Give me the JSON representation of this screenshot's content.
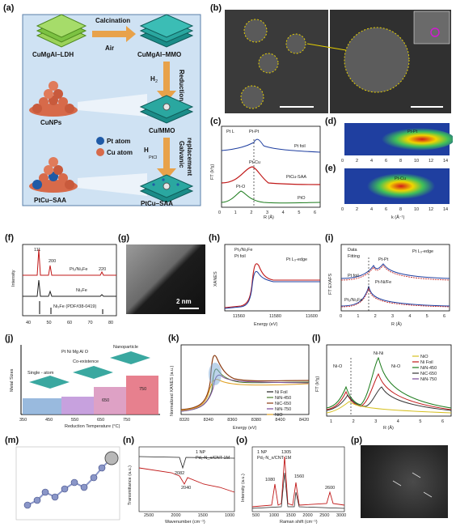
{
  "panels": {
    "a": {
      "label": "(a)",
      "cumgal_ldh": "CuMgAl–LDH",
      "calcination": "Calcination",
      "air": "Air",
      "cumgal_mmo": "CuMgAl–MMO",
      "reduction": "Reduction",
      "h2": "H",
      "h2_sub": "2",
      "cunps": "CuNPs",
      "cu_mmo": "Cu/MMO",
      "galvanic": "Galvanic",
      "replacement": "replacement",
      "h2ptcl6": "H",
      "h2ptcl6_rest": "PtCl",
      "pt_atom": "Pt atom",
      "cu_atom": "Cu atom",
      "ptcu_saa_left": "PtCu–SAA",
      "ptcu_saa_right": "PtCu–SAA"
    },
    "b": {
      "label": "(b)"
    },
    "c": {
      "label": "(c)",
      "edge": "Pt L",
      "edge_sub": "3",
      "edge_rest": "-edge",
      "ptpt": "Pt-Pt",
      "ptfoil": "Pt foil",
      "ptcu": "Pt-Cu",
      "ptcusaa": "PtCu-SAA",
      "pto": "Pt-O",
      "pto2": "PtO",
      "xlabel": "R (Å)",
      "ylabel": "FT (k³χ)",
      "xticks": [
        "0",
        "1",
        "2",
        "3",
        "4",
        "5",
        "6"
      ]
    },
    "d": {
      "label": "(d)",
      "ptpt": "Pt-Pt",
      "xticks": [
        "0",
        "2",
        "4",
        "6",
        "8",
        "10",
        "12",
        "14"
      ]
    },
    "e": {
      "label": "(e)",
      "ptcu": "Pt-Cu",
      "xlabel": "k (Å⁻¹)",
      "xticks": [
        "0",
        "2",
        "4",
        "6",
        "8",
        "10",
        "12",
        "14"
      ]
    },
    "f": {
      "label": "(f)",
      "p111": "111",
      "p200": "200",
      "p220": "220",
      "s1": "Pt₁/Ni₃Fe",
      "s2": "Ni₃Fe",
      "s3": "Ni₃Fe (PDF#38-0419)",
      "ylabel": "Intensity",
      "xlabel": "2 Theta (degree)",
      "xticks": [
        "40",
        "50",
        "60",
        "70",
        "80"
      ]
    },
    "g": {
      "label": "(g)",
      "scale": "2 nm"
    },
    "h": {
      "label": "(h)",
      "leg1": "Pt₁/Ni₃Fe",
      "leg2": "Pt foil",
      "edge": "Pt L₃-edge",
      "ylabel": "XANES",
      "xlabel": "Energy (eV)",
      "xticks": [
        "11560",
        "11580",
        "11600"
      ]
    },
    "i": {
      "label": "(i)",
      "leg1": "Data",
      "leg2": "Fitting",
      "edge": "Pt L₃-edge",
      "ptpt": "Pt-Pt",
      "ptnife": "Pt-Ni/Fe",
      "ptfoil": "Pt foil",
      "sample": "Pt₁/Ni₃Fe",
      "ylabel": "FT EXAFS",
      "xlabel": "R (Å)",
      "xticks": [
        "0",
        "1",
        "2",
        "3",
        "4",
        "5",
        "6"
      ]
    },
    "j": {
      "label": "(j)",
      "nano": "Nanoparticle",
      "coex": "Co-existence",
      "single": "Single - atom",
      "ylabel": "Metal Sizes",
      "xlabel": "Reduction Temperature (°C)",
      "xticks": [
        "350",
        "450",
        "550",
        "650",
        "750"
      ],
      "step650": "650",
      "step750": "750",
      "leg": "Pt  Ni  Mg  Al  O"
    },
    "k": {
      "label": "(k)",
      "ylabel": "Normalized XANES (a.u.)",
      "xlabel": "Energy (eV)",
      "xticks": [
        "8320",
        "8340",
        "8360",
        "8380",
        "8400",
        "8420"
      ],
      "legend": [
        "Ni Foil",
        "NiN-450",
        "NiC-650",
        "NiN-750",
        "NiO"
      ]
    },
    "l": {
      "label": "(l)",
      "nini": "Ni-Ni",
      "nio1": "Ni-O",
      "nio2": "Ni-O",
      "ylabel": "FT (k³χ)",
      "xlabel": "R (Å)",
      "xticks": [
        "1",
        "2",
        "3",
        "4",
        "5",
        "6"
      ],
      "legend": [
        "NiO",
        "Ni Foil",
        "NiN-450",
        "NiC-650",
        "NiN-750"
      ]
    },
    "m": {
      "label": "(m)"
    },
    "n": {
      "label": "(n)",
      "leg1": "1 NP",
      "leg2": "Pd₁-N_x/CNT-1M",
      "ylabel": "Transmittance (a.u.)",
      "xlabel": "Wavenumber (cm⁻¹)",
      "peak1": "2082",
      "peak2": "2040",
      "xticks": [
        "2500",
        "2000",
        "1500",
        "1000"
      ]
    },
    "o": {
      "label": "(o)",
      "leg1": "1 NP",
      "leg2": "Pd₁-N_x/CNT-1M",
      "ylabel": "Intensity (a.u.)",
      "xlabel": "Raman shift (cm⁻¹)",
      "pk1": "1305",
      "pk2": "1560",
      "pk3": "1080",
      "pk4": "2600",
      "xticks": [
        "500",
        "1000",
        "1500",
        "2000",
        "2500",
        "3000"
      ]
    },
    "p": {
      "label": "(p)"
    }
  },
  "colors": {
    "pt_atom": "#1f5aa6",
    "cu_atom": "#d76a4a",
    "arrow": "#e8a24a",
    "panel_a_bg": "#cfe2f3",
    "ldh_green": "#7cc242",
    "mmo_teal": "#2aa7a0"
  }
}
